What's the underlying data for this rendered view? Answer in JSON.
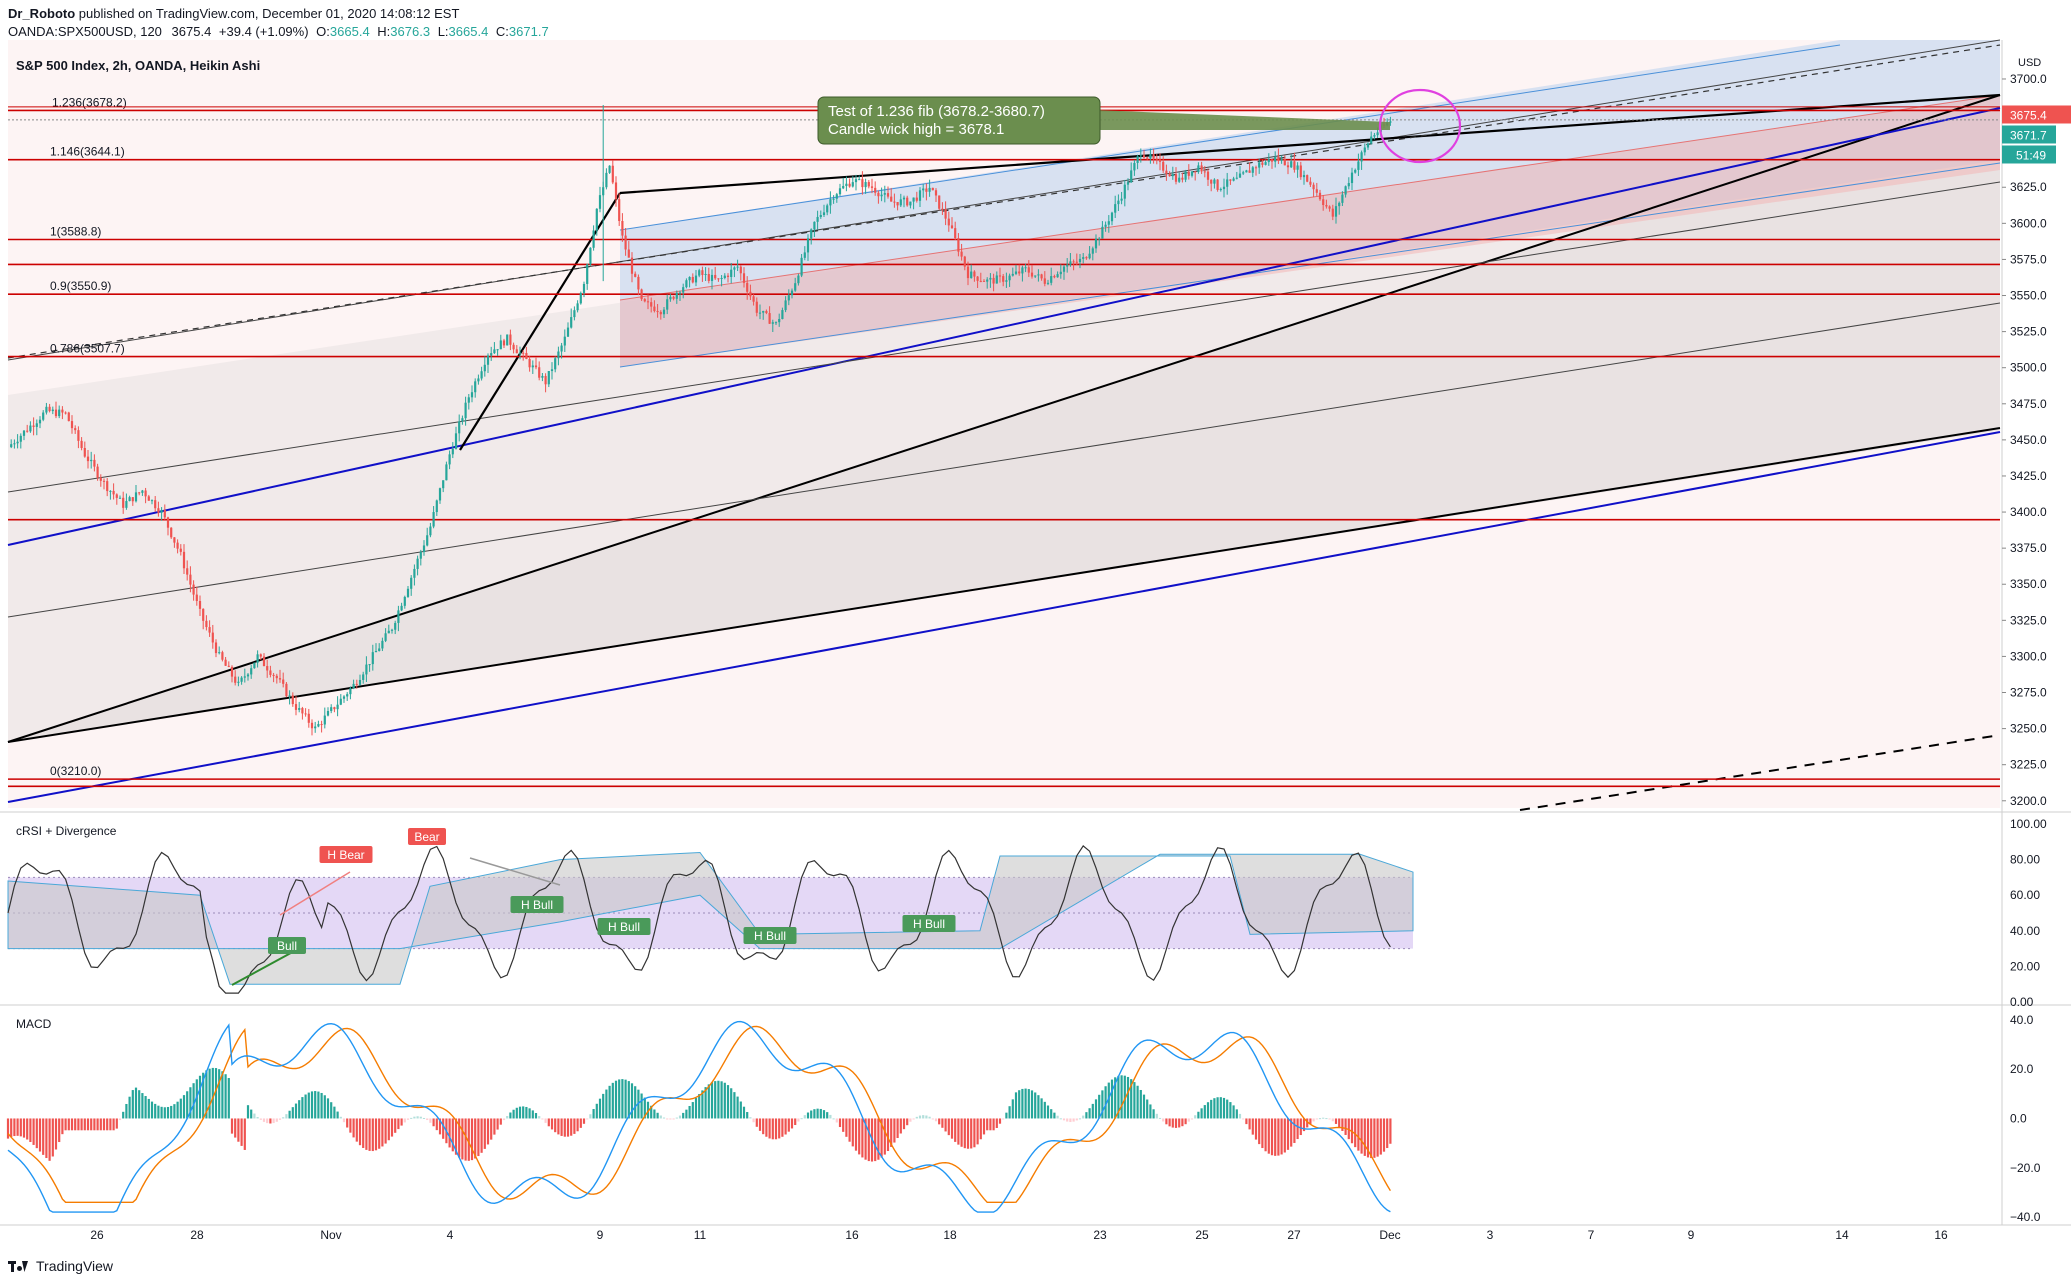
{
  "header": {
    "author": "Dr_Roboto",
    "published": "published on TradingView.com, December 01, 2020 14:08:12 EST",
    "symbol": "OANDA:SPX500USD, 120",
    "last": "3675.4",
    "change": "+39.4 (+1.09%)",
    "o_label": "O:",
    "o_val": "3665.4",
    "h_label": "H:",
    "h_val": "3676.3",
    "l_label": "L:",
    "l_val": "3665.4",
    "c_label": "C:",
    "c_val": "3671.7"
  },
  "main_pane": {
    "title": "S&P 500 Index, 2h, OANDA, Heikin Ashi",
    "currency": "USD",
    "annotation_line1": "Test of 1.236 fib (3678.2-3680.7)",
    "annotation_line2": "Candle wick high = 3678.1",
    "price_badge_red": "3675.4",
    "price_badge_teal": "3671.7",
    "price_badge_timer": "51:49"
  },
  "crsi_pane": {
    "title": "cRSI + Divergence"
  },
  "macd_pane": {
    "title": "MACD"
  },
  "footer": {
    "brand": "TradingView"
  },
  "colors": {
    "up": "#26a69a",
    "down": "#ef5350",
    "fib_line": "#cc0000",
    "channel_blue": "#1010c8",
    "annotation_bg": "#6b8e4e",
    "crsi_band": "#d9c8f2"
  },
  "chart_data": {
    "type": "candlestick",
    "title": "S&P 500 Index, 2h, OANDA, Heikin Ashi",
    "y_axis": {
      "ticks": [
        "3700.0",
        "3675.0",
        "3650.0",
        "3625.0",
        "3600.0",
        "3575.0",
        "3550.0",
        "3525.0",
        "3500.0",
        "3475.0",
        "3450.0",
        "3425.0",
        "3400.0",
        "3375.0",
        "3350.0",
        "3325.0",
        "3300.0",
        "3275.0",
        "3250.0",
        "3225.0",
        "3200.0"
      ],
      "range": [
        3195,
        3727
      ]
    },
    "x_axis": {
      "ticks": [
        "26",
        "28",
        "Nov",
        "4",
        "9",
        "11",
        "16",
        "18",
        "23",
        "25",
        "27",
        "Dec",
        "3",
        "7",
        "9",
        "14",
        "16"
      ]
    },
    "fib_levels": [
      {
        "label": "1.236(3678.2)",
        "value": 3678.2
      },
      {
        "label": "1.146(3644.1)",
        "value": 3644.1
      },
      {
        "label": "1(3588.8)",
        "value": 3588.8
      },
      {
        "label": "",
        "value": 3571.5
      },
      {
        "label": "0.9(3550.9)",
        "value": 3550.9
      },
      {
        "label": "0.786(3507.7)",
        "value": 3507.7
      },
      {
        "label": "",
        "value": 3394.7
      },
      {
        "label": "0(3210.0)",
        "value": 3215.0
      },
      {
        "label": "",
        "value": 3210.0
      }
    ],
    "price_path": [
      [
        0,
        3445
      ],
      [
        12,
        3470
      ],
      [
        18,
        3468
      ],
      [
        24,
        3440
      ],
      [
        30,
        3420
      ],
      [
        36,
        3405
      ],
      [
        42,
        3415
      ],
      [
        48,
        3400
      ],
      [
        54,
        3370
      ],
      [
        60,
        3330
      ],
      [
        66,
        3300
      ],
      [
        72,
        3280
      ],
      [
        78,
        3300
      ],
      [
        84,
        3285
      ],
      [
        90,
        3265
      ],
      [
        96,
        3250
      ],
      [
        102,
        3265
      ],
      [
        108,
        3280
      ],
      [
        114,
        3300
      ],
      [
        120,
        3320
      ],
      [
        126,
        3355
      ],
      [
        132,
        3390
      ],
      [
        138,
        3440
      ],
      [
        144,
        3480
      ],
      [
        150,
        3510
      ],
      [
        156,
        3520
      ],
      [
        162,
        3505
      ],
      [
        168,
        3490
      ],
      [
        174,
        3520
      ],
      [
        180,
        3560
      ],
      [
        184,
        3610
      ],
      [
        188,
        3640
      ],
      [
        192,
        3590
      ],
      [
        198,
        3545
      ],
      [
        204,
        3540
      ],
      [
        210,
        3555
      ],
      [
        216,
        3565
      ],
      [
        222,
        3560
      ],
      [
        228,
        3570
      ],
      [
        234,
        3540
      ],
      [
        240,
        3530
      ],
      [
        246,
        3560
      ],
      [
        252,
        3600
      ],
      [
        258,
        3620
      ],
      [
        264,
        3630
      ],
      [
        270,
        3625
      ],
      [
        276,
        3615
      ],
      [
        282,
        3615
      ],
      [
        288,
        3625
      ],
      [
        294,
        3600
      ],
      [
        300,
        3565
      ],
      [
        306,
        3560
      ],
      [
        312,
        3562
      ],
      [
        318,
        3568
      ],
      [
        324,
        3560
      ],
      [
        330,
        3570
      ],
      [
        336,
        3575
      ],
      [
        342,
        3595
      ],
      [
        348,
        3620
      ],
      [
        354,
        3650
      ],
      [
        360,
        3640
      ],
      [
        366,
        3630
      ],
      [
        372,
        3640
      ],
      [
        378,
        3625
      ],
      [
        384,
        3630
      ],
      [
        390,
        3640
      ],
      [
        396,
        3645
      ],
      [
        402,
        3640
      ],
      [
        408,
        3625
      ],
      [
        414,
        3605
      ],
      [
        420,
        3635
      ],
      [
        426,
        3660
      ],
      [
        432,
        3671
      ]
    ],
    "crsi": {
      "yticks": [
        "100.00",
        "80.00",
        "60.00",
        "40.00",
        "20.00",
        "0.00"
      ],
      "labels": [
        "H Bear",
        "Bear",
        "H Bull",
        "Bull",
        "H Bull",
        "H Bull",
        "H Bull"
      ],
      "range": [
        0,
        100
      ]
    },
    "macd": {
      "yticks": [
        "40.0",
        "20.0",
        "0.0",
        "−20.0",
        "−40.0"
      ],
      "range": [
        -42,
        44
      ]
    }
  }
}
